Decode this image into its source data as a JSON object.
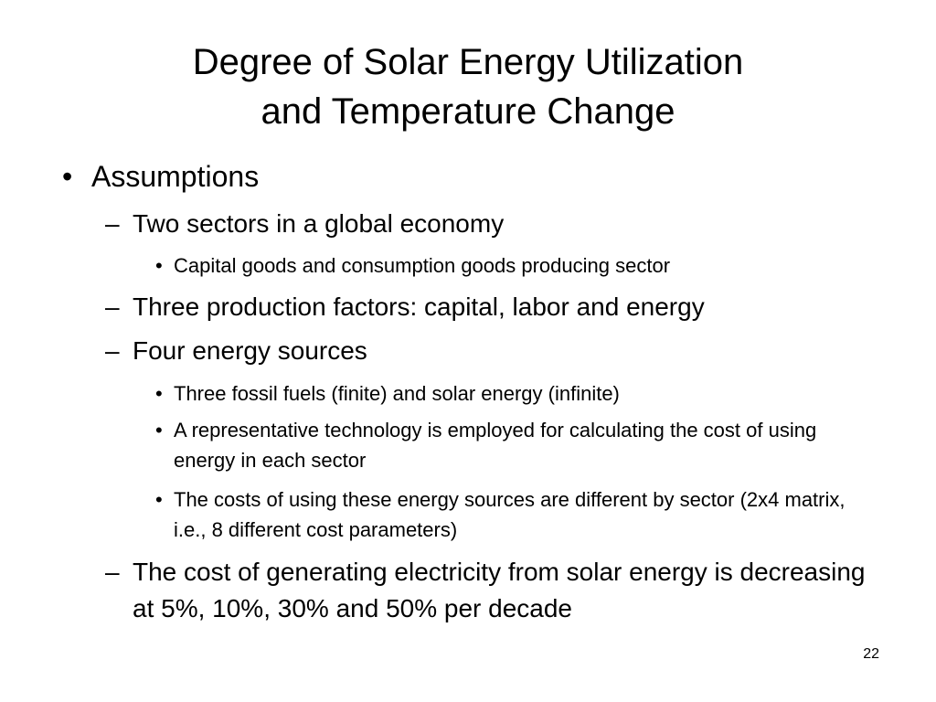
{
  "title": {
    "lines": [
      "Degree of Solar Energy Utilization",
      "and Temperature Change"
    ]
  },
  "bullets": [
    {
      "text": "Assumptions",
      "children": [
        {
          "text": "Two sectors in a global economy",
          "children": [
            {
              "text": "Capital goods and consumption goods producing sector"
            }
          ]
        },
        {
          "text": "Three production factors: capital, labor and energy"
        },
        {
          "text": "Four energy sources",
          "children": [
            {
              "text": "Three fossil fuels (finite) and solar energy (infinite)"
            },
            {
              "text": "A representative technology is employed for calculating the cost of using energy in each sector"
            },
            {
              "text": "The costs of using these energy sources are different by sector (2x4 matrix, i.e., 8 different cost parameters)"
            }
          ]
        },
        {
          "text": "The cost of generating electricity from solar energy is decreasing at 5%, 10%, 30% and 50% per decade"
        }
      ]
    }
  ],
  "page_number": "22"
}
